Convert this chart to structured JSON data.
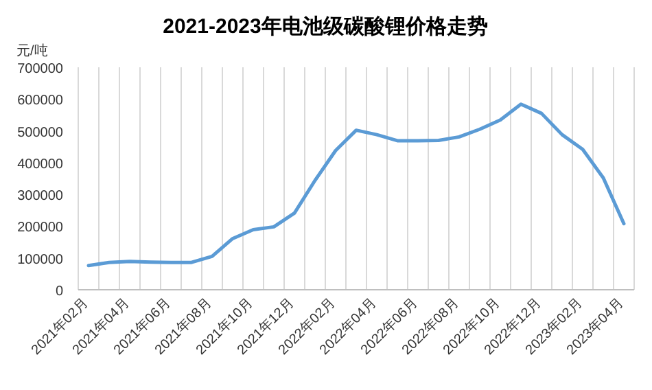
{
  "chart_data": {
    "type": "line",
    "title": "2021-2023年电池级碳酸锂价格走势",
    "ylabel": "元/吨",
    "categories": [
      "2021年02月",
      null,
      "2021年04月",
      null,
      "2021年06月",
      null,
      "2021年08月",
      null,
      "2021年10月",
      null,
      "2021年12月",
      null,
      "2022年02月",
      null,
      "2022年04月",
      null,
      "2022年06月",
      null,
      "2022年08月",
      null,
      "2022年10月",
      null,
      "2022年12月",
      null,
      "2023年02月",
      null,
      "2023年04月"
    ],
    "series": [
      {
        "color": "#5b9bd5",
        "values": [
          76000,
          86000,
          89000,
          87000,
          86000,
          86000,
          105000,
          161000,
          189000,
          198000,
          241000,
          344000,
          438000,
          502000,
          488000,
          469000,
          469000,
          470000,
          481000,
          505000,
          534000,
          584000,
          555000,
          488000,
          442000,
          352000,
          208000
        ]
      }
    ],
    "ylim": [
      0,
      700000
    ],
    "yticks": [
      0,
      100000,
      200000,
      300000,
      400000,
      500000,
      600000,
      700000
    ],
    "grid": "x",
    "marker": "none",
    "line_style": "solid"
  }
}
